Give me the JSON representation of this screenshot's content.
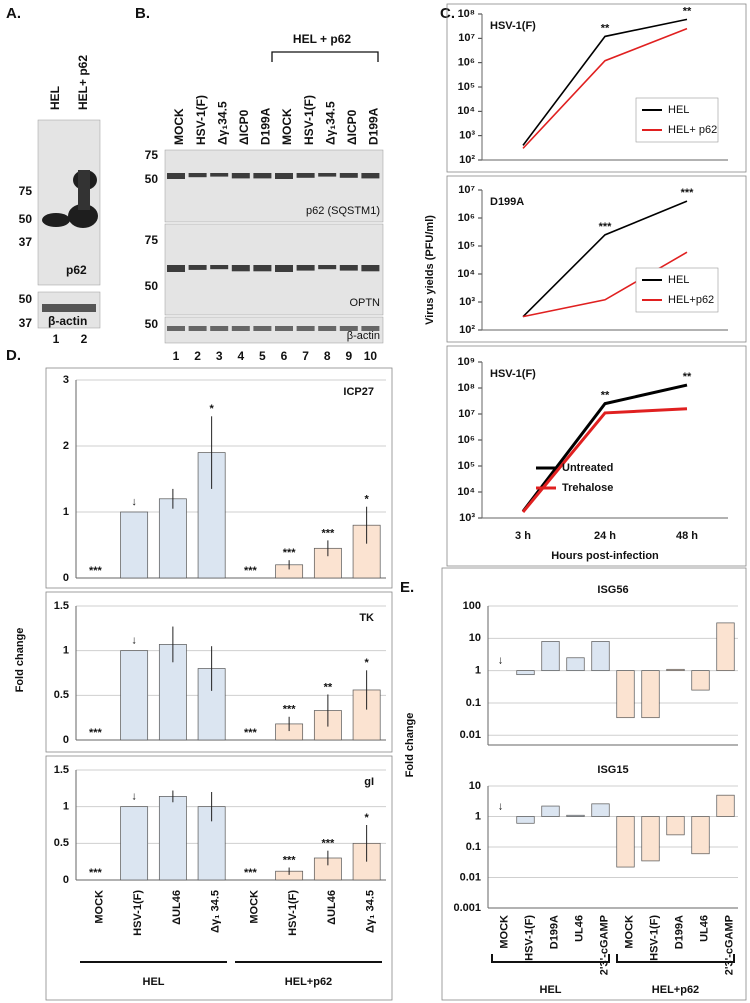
{
  "blot_a": {
    "panel_label": "A.",
    "lanes": [
      "HEL",
      "HEL+ p62"
    ],
    "markers_upper": [
      "75",
      "50",
      "37"
    ],
    "markers_lower": [
      "50",
      "37"
    ],
    "bands": [
      "p62",
      "β-actin"
    ],
    "lane_numbers": [
      "1",
      "2"
    ]
  },
  "blot_b": {
    "panel_label": "B.",
    "group_label": "HEL + p62",
    "lanes": [
      "MOCK",
      "HSV-1(F)",
      "Δγ₁34.5",
      "ΔICP0",
      "D199A",
      "MOCK",
      "HSV-1(F)",
      "Δγ₁34.5",
      "ΔICP0",
      "D199A"
    ],
    "markers_p62": [
      "75",
      "50"
    ],
    "markers_optn": [
      "75",
      "50"
    ],
    "markers_actin": [
      "50"
    ],
    "bands": [
      "p62 (SQSTM1)",
      "OPTN",
      "β-actin"
    ],
    "lane_numbers": [
      "1",
      "2",
      "3",
      "4",
      "5",
      "6",
      "7",
      "8",
      "9",
      "10"
    ]
  },
  "chart_data": [
    {
      "type": "line",
      "panel_label": "C.",
      "ylabel": "Virus yields (PFU/ml)",
      "xlabel": "Hours post-infection",
      "log_y": true,
      "categories": [
        "3 h",
        "24 h",
        "48 h"
      ],
      "panels": [
        {
          "title": "HSV-1(F)",
          "ylim": [
            100,
            100000000
          ],
          "legend": "lower right",
          "yticks": [
            {
              "value": 100,
              "label": "10²"
            },
            {
              "value": 1000,
              "label": "10³"
            },
            {
              "value": 10000,
              "label": "10⁴"
            },
            {
              "value": 100000,
              "label": "10⁵"
            },
            {
              "value": 1000000,
              "label": "10⁶"
            },
            {
              "value": 10000000,
              "label": "10⁷"
            },
            {
              "value": 100000000,
              "label": "10⁸"
            }
          ],
          "series": [
            {
              "name": "HEL",
              "color": "#000000",
              "values": [
                400,
                12000000,
                60000000
              ]
            },
            {
              "name": "HEL+ p62",
              "color": "#e02020",
              "values": [
                300,
                1200000,
                25000000
              ]
            }
          ],
          "annotations": [
            null,
            "**",
            "**"
          ]
        },
        {
          "title": "D199A",
          "ylim": [
            100,
            10000000
          ],
          "legend": "lower right",
          "yticks": [
            {
              "value": 100,
              "label": "10²"
            },
            {
              "value": 1000,
              "label": "10³"
            },
            {
              "value": 10000,
              "label": "10⁴"
            },
            {
              "value": 100000,
              "label": "10⁵"
            },
            {
              "value": 1000000,
              "label": "10⁶"
            },
            {
              "value": 10000000,
              "label": "10⁷"
            }
          ],
          "series": [
            {
              "name": "HEL",
              "color": "#000000",
              "values": [
                300,
                250000,
                4000000
              ]
            },
            {
              "name": "HEL+p62",
              "color": "#e02020",
              "values": [
                300,
                1200,
                60000
              ]
            }
          ],
          "annotations": [
            null,
            "***",
            "***"
          ]
        },
        {
          "title": "HSV-1(F)",
          "ylim": [
            1000,
            1000000000
          ],
          "legend": "lower center",
          "yticks": [
            {
              "value": 1000,
              "label": "10³"
            },
            {
              "value": 10000,
              "label": "10⁴"
            },
            {
              "value": 100000,
              "label": "10⁵"
            },
            {
              "value": 1000000,
              "label": "10⁶"
            },
            {
              "value": 10000000,
              "label": "10⁷"
            },
            {
              "value": 100000000,
              "label": "10⁸"
            },
            {
              "value": 1000000000,
              "label": "10⁹"
            }
          ],
          "series": [
            {
              "name": "Untreated",
              "color": "#000000",
              "values": [
                1800,
                25000000,
                130000000
              ]
            },
            {
              "name": "Trehalose",
              "color": "#e02020",
              "values": [
                1700,
                11000000,
                16000000
              ]
            }
          ],
          "annotations": [
            null,
            "**",
            "**"
          ]
        }
      ]
    },
    {
      "type": "bar",
      "panel_label": "D.",
      "ylabel": "Fold change",
      "log_y": false,
      "grid": true,
      "categories": [
        "MOCK",
        "HSV-1(F)",
        "ΔUL46",
        "Δγ₁ 34.5",
        "MOCK",
        "HSV-1(F)",
        "ΔUL46",
        "Δγ₁ 34.5"
      ],
      "colors": [
        "#dbe5f1",
        "#dbe5f1",
        "#dbe5f1",
        "#dbe5f1",
        "#fbe3d1",
        "#fbe3d1",
        "#fbe3d1",
        "#fbe3d1"
      ],
      "groups": [
        "HEL",
        "HEL+p62"
      ],
      "panels": [
        {
          "title": "ICP27",
          "ylim": [
            0,
            3
          ],
          "yticks": [
            0,
            1,
            2,
            3
          ],
          "values": [
            0,
            1,
            1.2,
            1.9,
            0,
            0.2,
            0.45,
            0.8
          ],
          "errors": [
            0,
            0,
            0.15,
            0.55,
            0,
            0.07,
            0.12,
            0.28
          ],
          "annotations": [
            "***",
            "↓",
            null,
            "*",
            "***",
            "***",
            "***",
            "*"
          ]
        },
        {
          "title": "TK",
          "ylim": [
            0,
            1.5
          ],
          "yticks": [
            0,
            0.5,
            1,
            1.5
          ],
          "values": [
            0,
            1,
            1.07,
            0.8,
            0,
            0.18,
            0.33,
            0.56
          ],
          "errors": [
            0,
            0,
            0.2,
            0.25,
            0,
            0.08,
            0.18,
            0.22
          ],
          "annotations": [
            "***",
            "↓",
            null,
            null,
            "***",
            "***",
            "**",
            "*"
          ]
        },
        {
          "title": "gI",
          "ylim": [
            0,
            1.5
          ],
          "yticks": [
            0,
            0.5,
            1,
            1.5
          ],
          "values": [
            0,
            1,
            1.14,
            1,
            0,
            0.12,
            0.3,
            0.5
          ],
          "errors": [
            0,
            0,
            0.08,
            0.2,
            0,
            0.05,
            0.1,
            0.25
          ],
          "annotations": [
            "***",
            "↓",
            null,
            null,
            "***",
            "***",
            "***",
            "*"
          ]
        }
      ]
    },
    {
      "type": "bar",
      "panel_label": "E.",
      "ylabel": "Fold change",
      "log_y": true,
      "grid": true,
      "categories": [
        "MOCK",
        "HSV-1(F)",
        "D199A",
        "UL46",
        "2'3'-cGAMP",
        "MOCK",
        "HSV-1(F)",
        "D199A",
        "UL46",
        "2'3'-cGAMP"
      ],
      "colors": [
        "#dbe5f1",
        "#dbe5f1",
        "#dbe5f1",
        "#dbe5f1",
        "#dbe5f1",
        "#fbe3d1",
        "#fbe3d1",
        "#fbe3d1",
        "#fbe3d1",
        "#fbe3d1"
      ],
      "groups": [
        "HEL",
        "HEL+p62"
      ],
      "panels": [
        {
          "title": "ISG56",
          "ylim": [
            0.005,
            100
          ],
          "yticks": [
            0.01,
            0.1,
            1,
            10,
            100
          ],
          "values": [
            1,
            0.75,
            8,
            2.5,
            8,
            0.035,
            0.035,
            1.1,
            0.25,
            30
          ],
          "annotations": [
            "↓",
            null,
            null,
            null,
            null,
            null,
            null,
            null,
            null,
            null
          ]
        },
        {
          "title": "ISG15",
          "ylim": [
            0.001,
            10
          ],
          "yticks": [
            0.001,
            0.01,
            0.1,
            1,
            10
          ],
          "values": [
            1,
            0.6,
            2.2,
            1.1,
            2.6,
            0.022,
            0.035,
            0.25,
            0.06,
            5
          ],
          "annotations": [
            "↓",
            null,
            null,
            null,
            null,
            null,
            null,
            null,
            null,
            null
          ]
        }
      ]
    }
  ]
}
